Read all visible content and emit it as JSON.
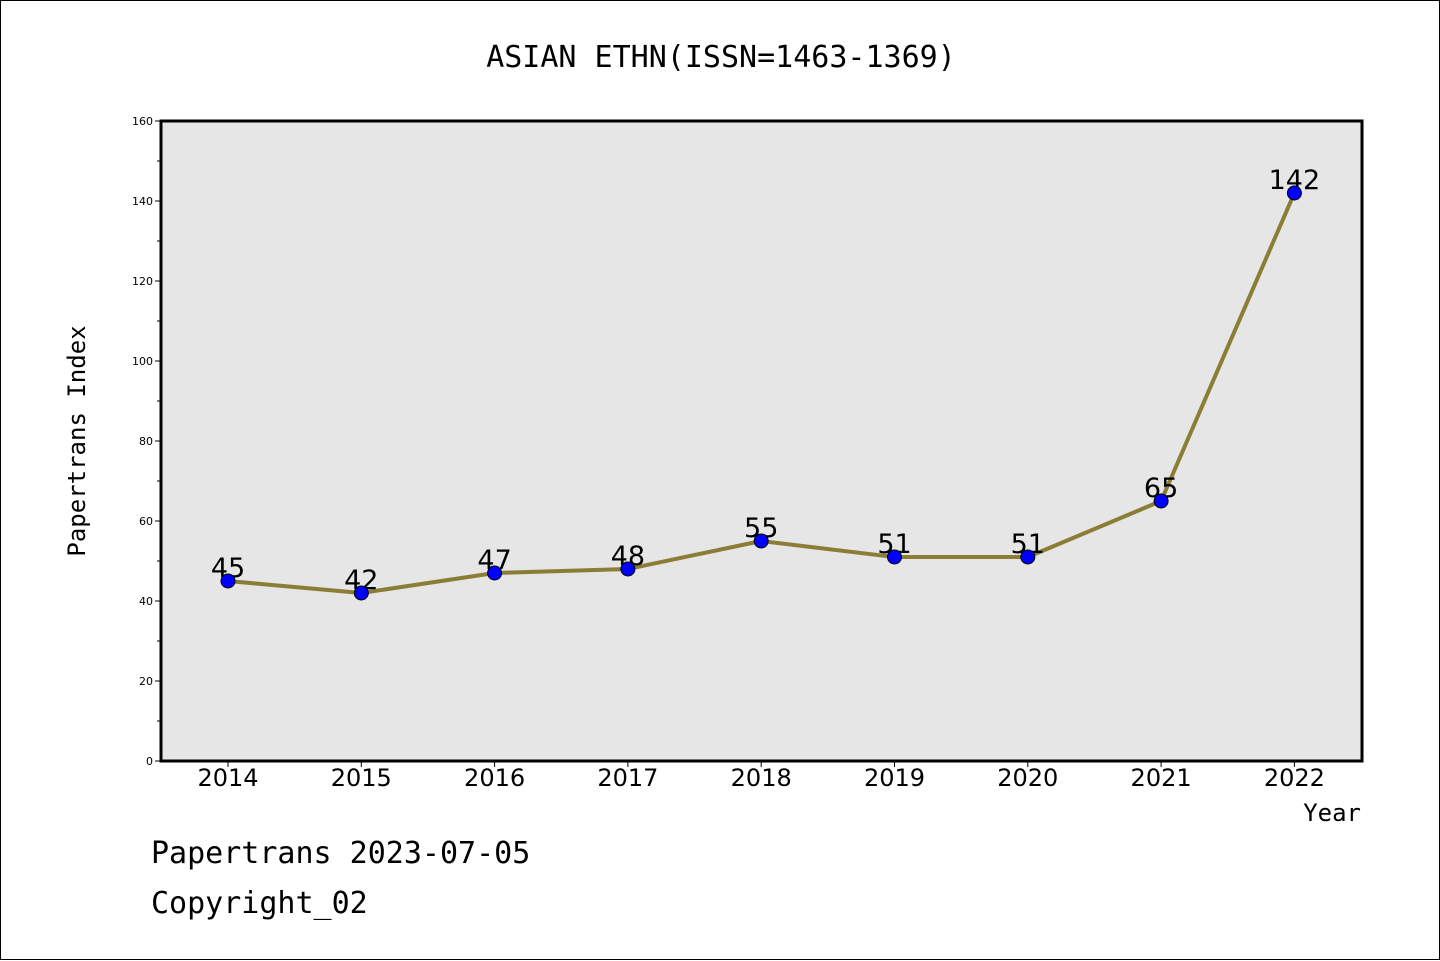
{
  "chart_data": {
    "type": "line",
    "title": "ASIAN ETHN(ISSN=1463-1369)",
    "xlabel": "Year",
    "ylabel": "Papertrans Index",
    "categories": [
      "2014",
      "2015",
      "2016",
      "2017",
      "2018",
      "2019",
      "2020",
      "2021",
      "2022"
    ],
    "series": [
      {
        "values": [
          45,
          42,
          47,
          48,
          55,
          51,
          51,
          65,
          142
        ]
      }
    ],
    "ylim": [
      0,
      160
    ],
    "yticks": [
      0,
      20,
      40,
      60,
      80,
      100,
      120,
      140,
      160
    ],
    "grid": false,
    "data_labels": true,
    "colors": {
      "line": "#8b7d35",
      "marker": "#0000ff",
      "plot_background": "#e6e6e6"
    }
  },
  "footer": {
    "line1": "Papertrans 2023-07-05",
    "line2": "Copyright_02"
  }
}
